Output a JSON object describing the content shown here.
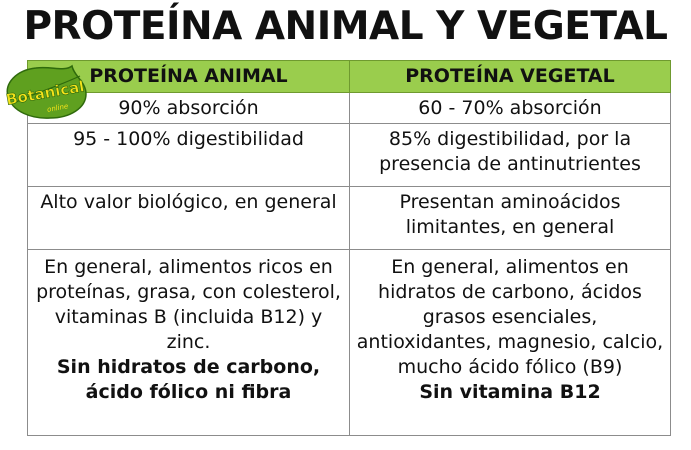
{
  "title": "PROTEÍNA ANIMAL Y VEGETAL",
  "logo": {
    "text": "Botanical",
    "subtext": "online",
    "color": "#5a9a1e",
    "icon": "leaf-logo-icon"
  },
  "colors": {
    "header_bg": "#9acd4d",
    "border": "#8c8c8c"
  },
  "table": {
    "headers": [
      "PROTEÍNA ANIMAL",
      "PROTEÍNA VEGETAL"
    ],
    "rows": [
      {
        "animal": "90% absorción",
        "vegetal": "60 - 70% absorción"
      },
      {
        "animal": "95 - 100% digestibilidad",
        "vegetal": "85% digestibilidad,  por la presencia de antinutrientes"
      },
      {
        "animal": "Alto valor biológico, en general",
        "vegetal": "Presentan aminoácidos limitantes, en general"
      },
      {
        "animal": "En general, alimentos ricos en proteínas, grasa, con colesterol, vitaminas B (incluida B12) y zinc.",
        "animal_bold": "Sin hidratos de carbono, ácido fólico ni fibra",
        "vegetal": "En general, alimentos en hidratos de carbono, ácidos grasos esenciales, antioxidantes, magnesio, calcio, mucho ácido fólico (B9)",
        "vegetal_bold": "Sin vitamina B12"
      }
    ]
  }
}
